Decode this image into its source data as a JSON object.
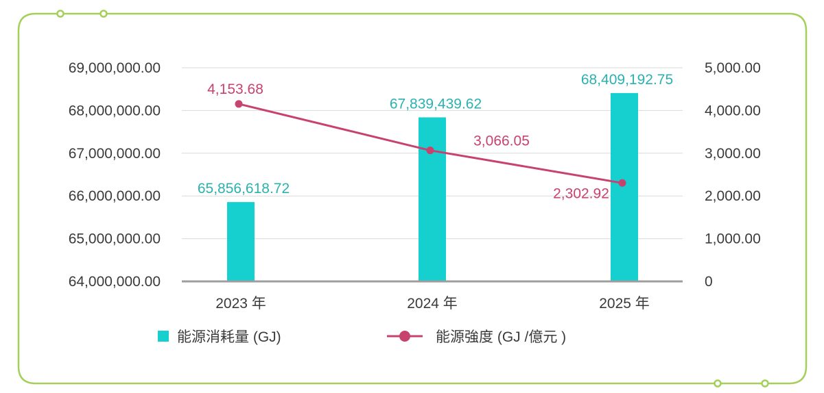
{
  "colors": {
    "frame": "#a4cf5a",
    "bar": "#16cfcf",
    "line": "#c8426e",
    "bar_label": "#2bb1b1",
    "line_label": "#c8426e",
    "grid": "#d9d9d9",
    "axis": "#9e9e9e"
  },
  "chart_data": {
    "type": "bar+line",
    "categories": [
      "2023 年",
      "2024 年",
      "2025 年"
    ],
    "series": [
      {
        "name": "能源消耗量 (GJ)",
        "type": "bar",
        "axis": "left",
        "values": [
          65856618.72,
          67839439.62,
          68409192.75
        ],
        "labels": [
          "65,856,618.72",
          "67,839,439.62",
          "68,409,192.75"
        ]
      },
      {
        "name": "能源強度 (GJ /億元 )",
        "type": "line",
        "axis": "right",
        "values": [
          4153.68,
          3066.05,
          2302.92
        ],
        "labels": [
          "4,153.68",
          "3,066.05",
          "2,302.92"
        ]
      }
    ],
    "y_left": {
      "ylim": [
        64000000,
        69000000
      ],
      "ticks": [
        "64,000,000.00",
        "65,000,000.00",
        "66,000,000.00",
        "67,000,000.00",
        "68,000,000.00",
        "69,000,000.00"
      ]
    },
    "y_right": {
      "ylim": [
        0,
        5000
      ],
      "ticks": [
        "0",
        "1,000.00",
        "2,000.00",
        "3,000.00",
        "4,000.00",
        "5,000.00"
      ]
    },
    "grid": true,
    "legend_position": "bottom"
  }
}
